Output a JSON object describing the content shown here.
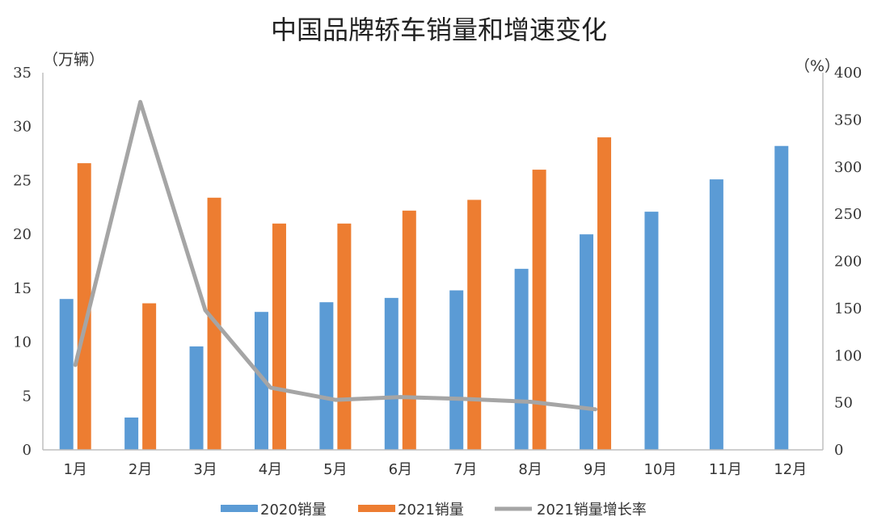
{
  "chart_data": {
    "type": "bar",
    "title": "中国品牌轿车销量和增速变化",
    "y_left_unit": "（万辆）",
    "y_right_unit": "（%）",
    "categories": [
      "1月",
      "2月",
      "3月",
      "4月",
      "5月",
      "6月",
      "7月",
      "8月",
      "9月",
      "10月",
      "11月",
      "12月"
    ],
    "ylim_left": [
      0,
      35
    ],
    "yticks_left": [
      "0",
      "5",
      "10",
      "15",
      "20",
      "25",
      "30",
      "35"
    ],
    "ylim_right": [
      0,
      400
    ],
    "yticks_right": [
      "0",
      "50",
      "100",
      "150",
      "200",
      "250",
      "300",
      "350",
      "400"
    ],
    "grid": false,
    "legend_position": "bottom",
    "series": [
      {
        "name": "2020销量",
        "type": "bar",
        "axis": "left",
        "color": "#5b9bd5",
        "values": [
          14.0,
          3.0,
          9.6,
          12.8,
          13.7,
          14.1,
          14.8,
          16.8,
          20.0,
          22.1,
          25.1,
          28.2
        ]
      },
      {
        "name": "2021销量",
        "type": "bar",
        "axis": "left",
        "color": "#ed7d31",
        "values": [
          26.6,
          13.6,
          23.4,
          21.0,
          21.0,
          22.2,
          23.2,
          26.0,
          29.0,
          null,
          null,
          null
        ]
      },
      {
        "name": "2021销量增长率",
        "type": "line",
        "axis": "right",
        "color": "#a5a5a5",
        "values": [
          90,
          369,
          148,
          66,
          53,
          56,
          54,
          51,
          43,
          null,
          null,
          null
        ]
      }
    ]
  }
}
